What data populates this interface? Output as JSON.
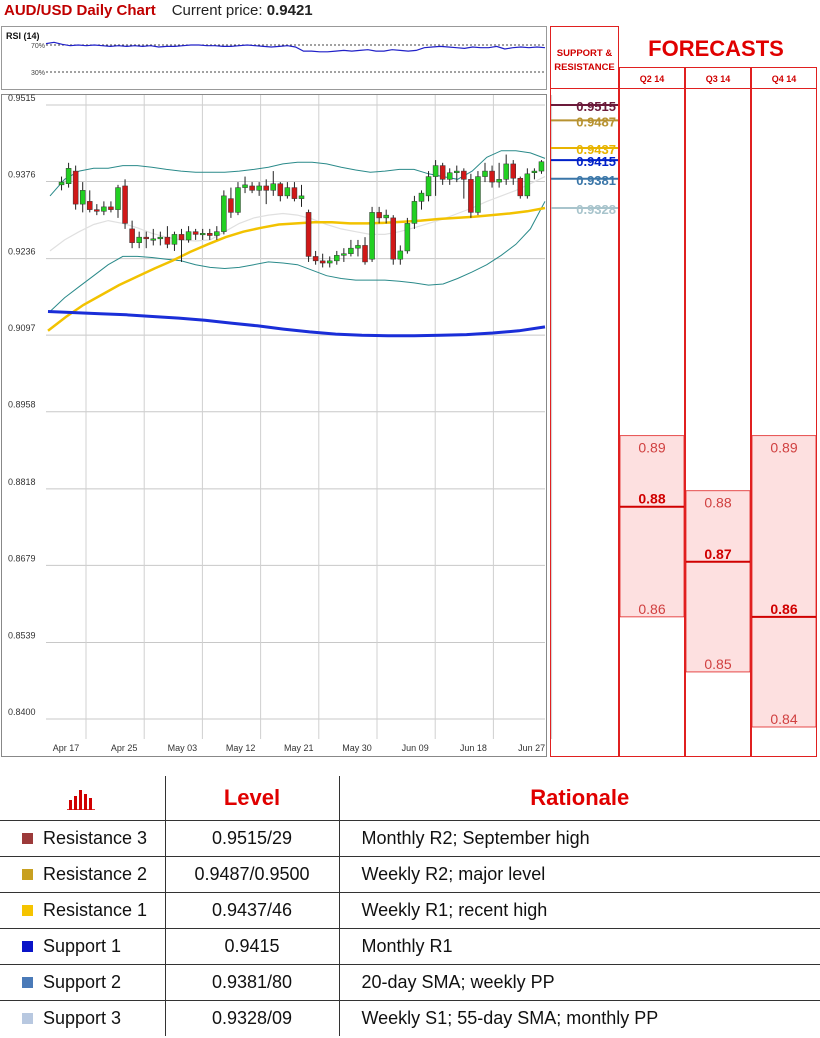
{
  "header": {
    "title": "AUD/USD Daily Chart",
    "price_label": "Current price:",
    "price_value": "0.9421"
  },
  "rsi": {
    "label": "RSI (14)",
    "upper": "70%",
    "lower": "30%",
    "values": [
      72,
      74,
      71,
      69,
      70,
      69,
      70,
      69,
      68,
      69,
      68,
      69,
      68,
      69,
      67,
      68,
      68,
      69,
      70,
      70,
      69,
      69,
      68,
      68,
      69,
      70,
      69,
      68,
      67,
      68,
      69,
      67,
      61,
      61,
      60,
      60,
      61,
      62,
      61,
      62,
      63,
      61,
      61,
      63,
      62,
      61,
      62,
      66,
      67,
      68,
      67,
      66,
      65,
      67,
      66,
      66,
      68,
      64,
      66,
      67,
      66,
      67,
      66
    ]
  },
  "sr_header": "SUPPORT & RESISTANCE",
  "forecast_header": "FORECASTS",
  "quarters": [
    "Q2 14",
    "Q3 14",
    "Q4 14"
  ],
  "forecasts": [
    {
      "quarter": "Q2 14",
      "high": "0.89",
      "mid": "0.88",
      "low": "0.86",
      "high_v": 0.89,
      "mid_v": 0.88,
      "low_v": 0.86
    },
    {
      "quarter": "Q3 14",
      "high": "0.88",
      "mid": "0.87",
      "low": "0.85",
      "high_v": 0.88,
      "mid_v": 0.87,
      "low_v": 0.85
    },
    {
      "quarter": "Q4 14",
      "high": "0.89",
      "mid": "0.86",
      "low": "0.84",
      "high_v": 0.89,
      "mid_v": 0.86,
      "low_v": 0.84
    }
  ],
  "chart_data": {
    "type": "candlestick",
    "title": "AUD/USD Daily Chart",
    "x_ticks": [
      "Apr 17",
      "Apr 25",
      "May 03",
      "May 12",
      "May 21",
      "May 30",
      "Jun 09",
      "Jun 18",
      "Jun 27"
    ],
    "y_ticks": [
      "0.9515",
      "0.9376",
      "0.9236",
      "0.9097",
      "0.8958",
      "0.8818",
      "0.8679",
      "0.8539",
      "0.8400"
    ],
    "ylim": [
      0.84,
      0.9515
    ],
    "candles": [
      {
        "o": 0.937,
        "h": 0.9385,
        "l": 0.936,
        "c": 0.9375
      },
      {
        "o": 0.9372,
        "h": 0.941,
        "l": 0.9365,
        "c": 0.94
      },
      {
        "o": 0.9395,
        "h": 0.9405,
        "l": 0.9325,
        "c": 0.9335
      },
      {
        "o": 0.9335,
        "h": 0.9375,
        "l": 0.932,
        "c": 0.936
      },
      {
        "o": 0.934,
        "h": 0.936,
        "l": 0.932,
        "c": 0.9325
      },
      {
        "o": 0.9325,
        "h": 0.9335,
        "l": 0.9315,
        "c": 0.9322
      },
      {
        "o": 0.9322,
        "h": 0.934,
        "l": 0.9315,
        "c": 0.933
      },
      {
        "o": 0.933,
        "h": 0.934,
        "l": 0.932,
        "c": 0.9325
      },
      {
        "o": 0.9325,
        "h": 0.937,
        "l": 0.931,
        "c": 0.9365
      },
      {
        "o": 0.9368,
        "h": 0.938,
        "l": 0.929,
        "c": 0.93
      },
      {
        "o": 0.929,
        "h": 0.9305,
        "l": 0.9255,
        "c": 0.9265
      },
      {
        "o": 0.9265,
        "h": 0.9285,
        "l": 0.9255,
        "c": 0.9275
      },
      {
        "o": 0.9275,
        "h": 0.9285,
        "l": 0.9255,
        "c": 0.9272
      },
      {
        "o": 0.9272,
        "h": 0.929,
        "l": 0.926,
        "c": 0.9272
      },
      {
        "o": 0.9272,
        "h": 0.9285,
        "l": 0.926,
        "c": 0.9275
      },
      {
        "o": 0.9275,
        "h": 0.9295,
        "l": 0.9255,
        "c": 0.9262
      },
      {
        "o": 0.9262,
        "h": 0.9285,
        "l": 0.925,
        "c": 0.928
      },
      {
        "o": 0.928,
        "h": 0.929,
        "l": 0.923,
        "c": 0.927
      },
      {
        "o": 0.927,
        "h": 0.9295,
        "l": 0.9265,
        "c": 0.9285
      },
      {
        "o": 0.9285,
        "h": 0.929,
        "l": 0.927,
        "c": 0.928
      },
      {
        "o": 0.928,
        "h": 0.929,
        "l": 0.927,
        "c": 0.9282
      },
      {
        "o": 0.9282,
        "h": 0.929,
        "l": 0.927,
        "c": 0.9278
      },
      {
        "o": 0.9278,
        "h": 0.9295,
        "l": 0.927,
        "c": 0.9285
      },
      {
        "o": 0.9285,
        "h": 0.936,
        "l": 0.928,
        "c": 0.935
      },
      {
        "o": 0.9345,
        "h": 0.9365,
        "l": 0.931,
        "c": 0.932
      },
      {
        "o": 0.932,
        "h": 0.9375,
        "l": 0.9315,
        "c": 0.9365
      },
      {
        "o": 0.9365,
        "h": 0.9385,
        "l": 0.9355,
        "c": 0.937
      },
      {
        "o": 0.9368,
        "h": 0.9375,
        "l": 0.9355,
        "c": 0.936
      },
      {
        "o": 0.936,
        "h": 0.9375,
        "l": 0.935,
        "c": 0.9368
      },
      {
        "o": 0.9368,
        "h": 0.938,
        "l": 0.9335,
        "c": 0.936
      },
      {
        "o": 0.936,
        "h": 0.9395,
        "l": 0.935,
        "c": 0.9372
      },
      {
        "o": 0.9372,
        "h": 0.9375,
        "l": 0.934,
        "c": 0.935
      },
      {
        "o": 0.935,
        "h": 0.9375,
        "l": 0.9345,
        "c": 0.9365
      },
      {
        "o": 0.9365,
        "h": 0.9375,
        "l": 0.934,
        "c": 0.9345
      },
      {
        "o": 0.9345,
        "h": 0.937,
        "l": 0.933,
        "c": 0.935
      },
      {
        "o": 0.932,
        "h": 0.9325,
        "l": 0.923,
        "c": 0.924
      },
      {
        "o": 0.924,
        "h": 0.925,
        "l": 0.9225,
        "c": 0.9232
      },
      {
        "o": 0.9232,
        "h": 0.9245,
        "l": 0.922,
        "c": 0.9228
      },
      {
        "o": 0.9228,
        "h": 0.924,
        "l": 0.922,
        "c": 0.9232
      },
      {
        "o": 0.9232,
        "h": 0.925,
        "l": 0.9225,
        "c": 0.9242
      },
      {
        "o": 0.9242,
        "h": 0.9255,
        "l": 0.923,
        "c": 0.9245
      },
      {
        "o": 0.9245,
        "h": 0.927,
        "l": 0.924,
        "c": 0.9255
      },
      {
        "o": 0.9255,
        "h": 0.927,
        "l": 0.924,
        "c": 0.926
      },
      {
        "o": 0.926,
        "h": 0.9275,
        "l": 0.9225,
        "c": 0.923
      },
      {
        "o": 0.9235,
        "h": 0.933,
        "l": 0.923,
        "c": 0.932
      },
      {
        "o": 0.932,
        "h": 0.933,
        "l": 0.93,
        "c": 0.931
      },
      {
        "o": 0.931,
        "h": 0.9325,
        "l": 0.93,
        "c": 0.9315
      },
      {
        "o": 0.931,
        "h": 0.9315,
        "l": 0.9225,
        "c": 0.9235
      },
      {
        "o": 0.9235,
        "h": 0.926,
        "l": 0.9225,
        "c": 0.925
      },
      {
        "o": 0.925,
        "h": 0.931,
        "l": 0.9245,
        "c": 0.93
      },
      {
        "o": 0.93,
        "h": 0.935,
        "l": 0.929,
        "c": 0.934
      },
      {
        "o": 0.934,
        "h": 0.936,
        "l": 0.9325,
        "c": 0.9355
      },
      {
        "o": 0.935,
        "h": 0.9395,
        "l": 0.934,
        "c": 0.9385
      },
      {
        "o": 0.9385,
        "h": 0.9415,
        "l": 0.935,
        "c": 0.9405
      },
      {
        "o": 0.9405,
        "h": 0.941,
        "l": 0.937,
        "c": 0.938
      },
      {
        "o": 0.938,
        "h": 0.94,
        "l": 0.937,
        "c": 0.9392
      },
      {
        "o": 0.9392,
        "h": 0.9405,
        "l": 0.9375,
        "c": 0.9395
      },
      {
        "o": 0.9395,
        "h": 0.94,
        "l": 0.9345,
        "c": 0.938
      },
      {
        "o": 0.938,
        "h": 0.939,
        "l": 0.931,
        "c": 0.932
      },
      {
        "o": 0.932,
        "h": 0.9395,
        "l": 0.9315,
        "c": 0.9385
      },
      {
        "o": 0.9385,
        "h": 0.941,
        "l": 0.9375,
        "c": 0.9395
      },
      {
        "o": 0.9395,
        "h": 0.9405,
        "l": 0.9365,
        "c": 0.9375
      },
      {
        "o": 0.9375,
        "h": 0.941,
        "l": 0.9365,
        "c": 0.938
      },
      {
        "o": 0.938,
        "h": 0.9425,
        "l": 0.937,
        "c": 0.9408
      },
      {
        "o": 0.9408,
        "h": 0.9415,
        "l": 0.937,
        "c": 0.9382
      },
      {
        "o": 0.9382,
        "h": 0.9385,
        "l": 0.9345,
        "c": 0.935
      },
      {
        "o": 0.935,
        "h": 0.94,
        "l": 0.9345,
        "c": 0.939
      },
      {
        "o": 0.9392,
        "h": 0.94,
        "l": 0.938,
        "c": 0.9395
      },
      {
        "o": 0.9395,
        "h": 0.9415,
        "l": 0.939,
        "c": 0.9412
      }
    ],
    "series": [
      {
        "name": "upper band",
        "values": [
          0.935,
          0.938,
          0.9395,
          0.94,
          0.94,
          0.9405,
          0.9405,
          0.9402,
          0.9398,
          0.9395,
          0.9393,
          0.9393,
          0.9393,
          0.9395,
          0.9398,
          0.9402,
          0.9408,
          0.9411,
          0.9411,
          0.9408,
          0.9402,
          0.9397,
          0.9393,
          0.9395,
          0.9398,
          0.9398,
          0.939,
          0.9385,
          0.938,
          0.9395,
          0.942,
          0.9432,
          0.9432,
          0.9428,
          0.9418
        ]
      },
      {
        "name": "lower band",
        "values": [
          0.914,
          0.9165,
          0.9185,
          0.9205,
          0.9225,
          0.924,
          0.924,
          0.9238,
          0.9235,
          0.9232,
          0.9225,
          0.922,
          0.9218,
          0.922,
          0.9225,
          0.923,
          0.9228,
          0.9225,
          0.9215,
          0.9205,
          0.92,
          0.9197,
          0.9197,
          0.9197,
          0.9195,
          0.9192,
          0.9188,
          0.919,
          0.92,
          0.9212,
          0.9225,
          0.9242,
          0.9262,
          0.929,
          0.934
        ]
      },
      {
        "name": "middle band",
        "values": [
          0.925,
          0.927,
          0.9285,
          0.9298,
          0.9305,
          0.93,
          0.9292,
          0.9282,
          0.9275,
          0.927,
          0.9268,
          0.927,
          0.9285,
          0.93,
          0.931,
          0.9315,
          0.9318,
          0.9315,
          0.9308,
          0.9298,
          0.929,
          0.9285,
          0.928,
          0.928,
          0.9285,
          0.9292,
          0.93,
          0.9308,
          0.9318,
          0.9328,
          0.934,
          0.935,
          0.936,
          0.9372,
          0.9385
        ]
      },
      {
        "name": "yellow moving average",
        "values": [
          0.9105,
          0.913,
          0.9152,
          0.917,
          0.9188,
          0.9203,
          0.9218,
          0.9232,
          0.9248,
          0.9262,
          0.9275,
          0.9285,
          0.9292,
          0.9298,
          0.93,
          0.9302,
          0.9302,
          0.93,
          0.93,
          0.9301,
          0.9303,
          0.9305,
          0.9308,
          0.931,
          0.9312,
          0.9315,
          0.9318,
          0.9322,
          0.9328
        ]
      },
      {
        "name": "blue moving average",
        "values": [
          0.914,
          0.9138,
          0.9136,
          0.9134,
          0.9131,
          0.9128,
          0.9124,
          0.9119,
          0.9114,
          0.9108,
          0.9103,
          0.9099,
          0.9097,
          0.9096,
          0.9096,
          0.9097,
          0.9098,
          0.9101,
          0.9105,
          0.9112
        ]
      }
    ]
  },
  "sr_levels": [
    {
      "label": "0.9515",
      "value": 0.9515,
      "color": "#6b1a3a",
      "fill": "#ffffff"
    },
    {
      "label": "0.9487",
      "value": 0.9487,
      "color": "#b79230",
      "fill": "#ffffff"
    },
    {
      "label": "0.9437",
      "value": 0.9437,
      "color": "#e8b400",
      "fill": "#ffffff"
    },
    {
      "label": "0.9415",
      "value": 0.9415,
      "color": "#0020c8",
      "fill": "#ffffff"
    },
    {
      "label": "0.9381",
      "value": 0.9381,
      "color": "#3a76a8",
      "fill": "#ffffff"
    },
    {
      "label": "0.9328",
      "value": 0.9328,
      "color": "#a8c4cc",
      "fill": "#ffffff"
    }
  ],
  "table": {
    "headers": [
      "",
      "Level",
      "Rationale"
    ],
    "rows": [
      {
        "name": "Resistance 3",
        "level": "0.9515/29",
        "rationale": "Monthly R2; September high",
        "color": "#9c3a3a"
      },
      {
        "name": "Resistance 2",
        "level": "0.9487/0.9500",
        "rationale": "Weekly R2; major level",
        "color": "#c8a020"
      },
      {
        "name": "Resistance 1",
        "level": "0.9437/46",
        "rationale": "Weekly R1;  recent high",
        "color": "#f5c400"
      },
      {
        "name": "Support 1",
        "level": "0.9415",
        "rationale": "Monthly R1",
        "color": "#0a14c8"
      },
      {
        "name": "Support 2",
        "level": "0.9381/80",
        "rationale": "20-day SMA; weekly PP",
        "color": "#4a7ab8"
      },
      {
        "name": "Support 3",
        "level": "0.9328/09",
        "rationale": "Weekly S1; 55-day SMA; monthly PP",
        "color": "#b8c8e0"
      }
    ]
  },
  "colors": {
    "accent": "#e00000",
    "bull": "#22d022",
    "bear": "#d01818",
    "grid": "#c0c0c0"
  }
}
